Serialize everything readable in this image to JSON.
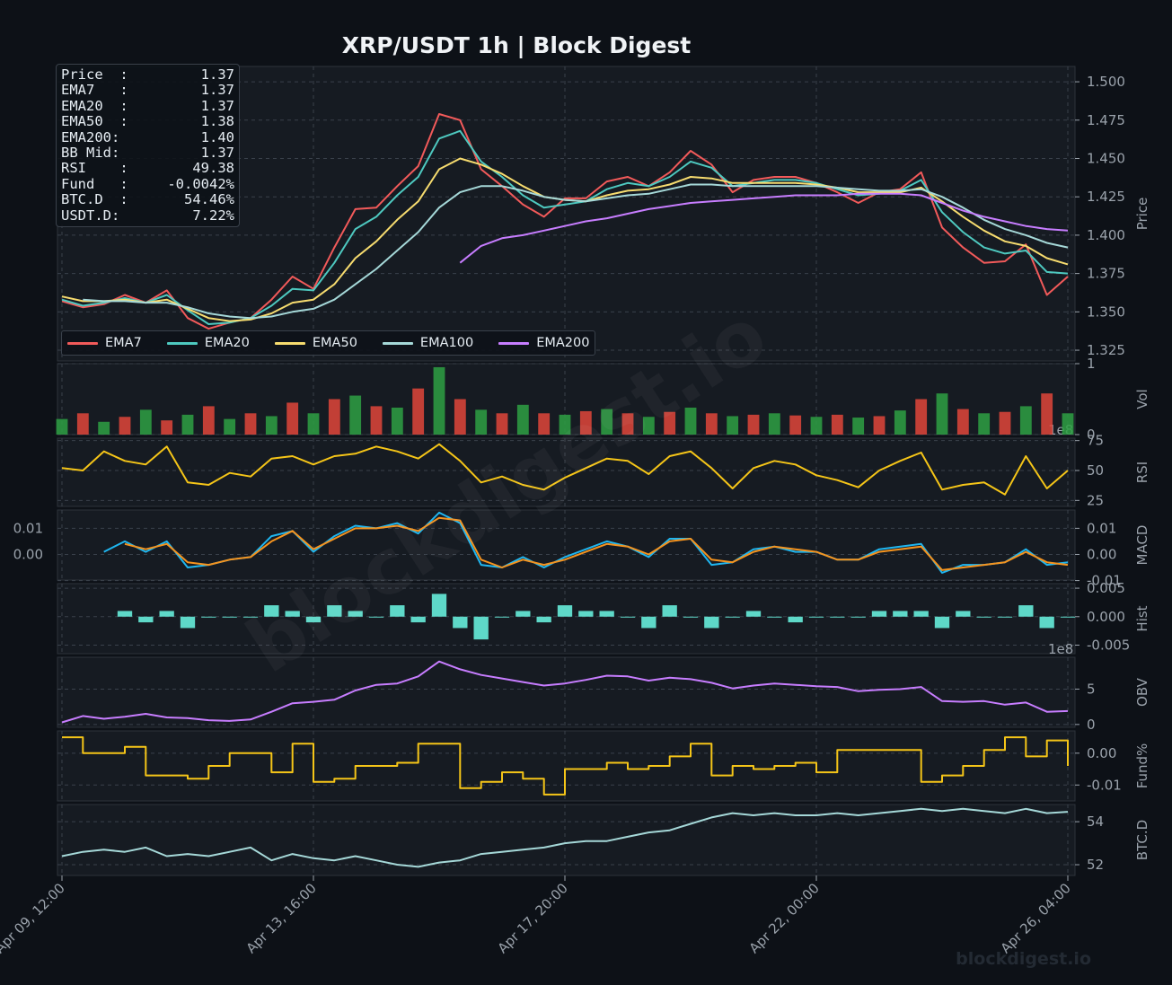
{
  "title": "XRP/USDT  1h  |  Block Digest",
  "watermark": "blockdigest.io",
  "footer": "blockdigest.io",
  "info_box": [
    {
      "label": "Price  :",
      "value": "1.37"
    },
    {
      "label": "EMA7   :",
      "value": "1.37"
    },
    {
      "label": "EMA20  :",
      "value": "1.37"
    },
    {
      "label": "EMA50  :",
      "value": "1.38"
    },
    {
      "label": "EMA200:",
      "value": "1.40"
    },
    {
      "label": "BB Mid:",
      "value": "1.37"
    },
    {
      "label": "RSI    :",
      "value": "49.38"
    },
    {
      "label": "Fund   :",
      "value": "-0.0042%"
    },
    {
      "label": "BTC.D  :",
      "value": "54.46%"
    },
    {
      "label": "USDT.D:",
      "value": "7.22%"
    }
  ],
  "legend": [
    {
      "name": "EMA7",
      "color": "#f25a5a"
    },
    {
      "name": "EMA20",
      "color": "#4ec9c0"
    },
    {
      "name": "EMA50",
      "color": "#f7dc6f"
    },
    {
      "name": "EMA100",
      "color": "#a5d8d8"
    },
    {
      "name": "EMA200",
      "color": "#c77dff"
    }
  ],
  "colors": {
    "bg": "#0d1117",
    "panel": "#161b22",
    "grid": "#3a414b",
    "tick": "#9aa2ab",
    "up": "#2ea043",
    "down": "#e0453a",
    "rsi": "#f5c518",
    "macd": "#1fb6f0",
    "signal": "#f5931e",
    "hist": "#5ed8c8",
    "obv": "#c77dff",
    "funding": "#f5c518",
    "btcd": "#a5d8d8"
  },
  "chart_data": {
    "type": "line",
    "x_labels": [
      "Apr 09, 12:00",
      "Apr 13, 16:00",
      "Apr 17, 20:00",
      "Apr 22, 00:00",
      "Apr 26, 04:00"
    ],
    "panels": [
      {
        "key": "price",
        "ylabel": "Price",
        "ticks": [
          "1.325",
          "1.350",
          "1.375",
          "1.400",
          "1.425",
          "1.450",
          "1.475",
          "1.500"
        ],
        "ylim": [
          1.318,
          1.51
        ],
        "series": [
          {
            "name": "EMA7",
            "values": [
              1.357,
              1.353,
              1.355,
              1.361,
              1.356,
              1.364,
              1.346,
              1.339,
              1.343,
              1.346,
              1.358,
              1.373,
              1.365,
              1.392,
              1.417,
              1.418,
              1.432,
              1.445,
              1.479,
              1.475,
              1.443,
              1.432,
              1.42,
              1.412,
              1.424,
              1.424,
              1.435,
              1.438,
              1.432,
              1.441,
              1.455,
              1.446,
              1.428,
              1.436,
              1.438,
              1.438,
              1.434,
              1.428,
              1.421,
              1.428,
              1.43,
              1.441,
              1.405,
              1.392,
              1.382,
              1.383,
              1.394,
              1.361,
              1.373
            ]
          },
          {
            "name": "EMA20",
            "values": [
              1.358,
              1.354,
              1.356,
              1.359,
              1.356,
              1.361,
              1.351,
              1.342,
              1.343,
              1.346,
              1.354,
              1.365,
              1.364,
              1.382,
              1.404,
              1.412,
              1.426,
              1.438,
              1.463,
              1.468,
              1.448,
              1.438,
              1.426,
              1.418,
              1.42,
              1.422,
              1.43,
              1.434,
              1.432,
              1.438,
              1.448,
              1.444,
              1.432,
              1.434,
              1.436,
              1.436,
              1.434,
              1.43,
              1.426,
              1.427,
              1.429,
              1.436,
              1.415,
              1.402,
              1.392,
              1.388,
              1.39,
              1.376,
              1.375
            ]
          },
          {
            "name": "EMA50",
            "values": [
              1.36,
              1.357,
              1.357,
              1.358,
              1.356,
              1.358,
              1.352,
              1.346,
              1.344,
              1.345,
              1.349,
              1.356,
              1.358,
              1.368,
              1.385,
              1.396,
              1.41,
              1.422,
              1.443,
              1.45,
              1.446,
              1.44,
              1.432,
              1.425,
              1.423,
              1.422,
              1.426,
              1.429,
              1.43,
              1.433,
              1.438,
              1.437,
              1.434,
              1.434,
              1.434,
              1.434,
              1.433,
              1.431,
              1.428,
              1.428,
              1.428,
              1.431,
              1.422,
              1.412,
              1.403,
              1.396,
              1.393,
              1.385,
              1.381
            ]
          },
          {
            "name": "EMA100",
            "values": [
              null,
              1.358,
              1.357,
              1.357,
              1.356,
              1.356,
              1.353,
              1.349,
              1.347,
              1.346,
              1.347,
              1.35,
              1.352,
              1.358,
              1.368,
              1.378,
              1.39,
              1.402,
              1.418,
              1.428,
              1.432,
              1.432,
              1.429,
              1.425,
              1.423,
              1.422,
              1.424,
              1.426,
              1.427,
              1.43,
              1.433,
              1.433,
              1.432,
              1.432,
              1.432,
              1.432,
              1.432,
              1.431,
              1.43,
              1.429,
              1.429,
              1.43,
              1.425,
              1.418,
              1.41,
              1.404,
              1.4,
              1.395,
              1.392
            ]
          },
          {
            "name": "EMA200",
            "values": [
              null,
              null,
              null,
              null,
              null,
              null,
              null,
              null,
              null,
              null,
              null,
              null,
              null,
              null,
              null,
              null,
              null,
              null,
              null,
              1.382,
              1.393,
              1.398,
              1.4,
              1.403,
              1.406,
              1.409,
              1.411,
              1.414,
              1.417,
              1.419,
              1.421,
              1.422,
              1.423,
              1.424,
              1.425,
              1.426,
              1.426,
              1.426,
              1.427,
              1.427,
              1.427,
              1.426,
              1.421,
              1.416,
              1.412,
              1.409,
              1.406,
              1.404,
              1.403
            ]
          }
        ]
      },
      {
        "key": "vol",
        "ylabel": "Vol",
        "ticks": [
          "0",
          "1"
        ],
        "ylim": [
          0,
          1
        ],
        "exponent": "1e8",
        "series": [
          {
            "name": "",
            "values": [
              0.22,
              0.3,
              0.18,
              0.25,
              0.35,
              0.2,
              0.28,
              0.4,
              0.22,
              0.3,
              0.26,
              0.45,
              0.3,
              0.5,
              0.55,
              0.4,
              0.38,
              0.65,
              0.95,
              0.5,
              0.35,
              0.3,
              0.42,
              0.3,
              0.28,
              0.33,
              0.36,
              0.3,
              0.25,
              0.32,
              0.38,
              0.3,
              0.26,
              0.28,
              0.3,
              0.27,
              0.25,
              0.28,
              0.24,
              0.26,
              0.34,
              0.5,
              0.58,
              0.36,
              0.3,
              0.32,
              0.4,
              0.58,
              0.3
            ]
          }
        ]
      },
      {
        "key": "rsi",
        "ylabel": "RSI",
        "ticks": [
          "25",
          "50",
          "75"
        ],
        "ylim": [
          20,
          77
        ],
        "series": [
          {
            "name": "",
            "values": [
              52,
              50,
              66,
              58,
              55,
              70,
              40,
              38,
              48,
              45,
              60,
              62,
              55,
              62,
              64,
              70,
              66,
              60,
              72,
              58,
              40,
              45,
              38,
              34,
              44,
              52,
              60,
              58,
              47,
              62,
              66,
              52,
              35,
              52,
              58,
              55,
              46,
              42,
              36,
              50,
              58,
              65,
              34,
              38,
              40,
              30,
              62,
              35,
              50
            ]
          }
        ]
      },
      {
        "key": "macd",
        "ylabel": "MACD",
        "ticks": [
          "-0.01",
          "0.00",
          "0.01"
        ],
        "ylim": [
          -0.0098,
          0.017
        ],
        "series": [
          {
            "name": "",
            "values": [
              null,
              null,
              0.001,
              0.005,
              0.001,
              0.005,
              -0.005,
              -0.004,
              -0.002,
              -0.001,
              0.007,
              0.009,
              0.001,
              0.007,
              0.011,
              0.01,
              0.012,
              0.008,
              0.016,
              0.012,
              -0.004,
              -0.005,
              -0.001,
              -0.005,
              -0.001,
              0.002,
              0.005,
              0.003,
              -0.001,
              0.006,
              0.006,
              -0.004,
              -0.003,
              0.002,
              0.003,
              0.001,
              0.001,
              -0.002,
              -0.002,
              0.002,
              0.003,
              0.004,
              -0.007,
              -0.004,
              -0.004,
              -0.003,
              0.002,
              -0.004,
              -0.003
            ]
          },
          {
            "name": "",
            "values": [
              null,
              null,
              null,
              0.004,
              0.002,
              0.004,
              -0.003,
              -0.004,
              -0.002,
              -0.001,
              0.005,
              0.009,
              0.002,
              0.006,
              0.01,
              0.01,
              0.011,
              0.009,
              0.014,
              0.013,
              -0.002,
              -0.005,
              -0.002,
              -0.004,
              -0.002,
              0.001,
              0.004,
              0.003,
              0.0,
              0.005,
              0.006,
              -0.002,
              -0.003,
              0.001,
              0.003,
              0.002,
              0.001,
              -0.002,
              -0.002,
              0.001,
              0.002,
              0.003,
              -0.006,
              -0.005,
              -0.004,
              -0.003,
              0.001,
              -0.003,
              -0.004
            ]
          }
        ]
      },
      {
        "key": "hist",
        "ylabel": "Hist",
        "ticks": [
          "-0.005",
          "0.000",
          "0.005"
        ],
        "ylim": [
          -0.0065,
          0.0058
        ],
        "exponent": "1e8",
        "series": [
          {
            "name": "",
            "values": [
              null,
              null,
              null,
              0.001,
              -0.001,
              0.001,
              -0.002,
              0.0,
              0.0,
              0.0,
              0.002,
              0.001,
              -0.001,
              0.002,
              0.001,
              0.0,
              0.002,
              -0.001,
              0.004,
              -0.002,
              -0.004,
              0.0,
              0.001,
              -0.001,
              0.002,
              0.001,
              0.001,
              0.0,
              -0.002,
              0.002,
              0.0,
              -0.002,
              0.0,
              0.001,
              0.0,
              -0.001,
              0.0,
              0.0,
              0.0,
              0.001,
              0.001,
              0.001,
              -0.002,
              0.001,
              0.0,
              0.0,
              0.002,
              -0.002,
              0.0
            ]
          }
        ]
      },
      {
        "key": "obv",
        "ylabel": "OBV",
        "ticks": [
          "0",
          "5"
        ],
        "ylim": [
          -0.4,
          9.5
        ],
        "series": [
          {
            "name": "",
            "values": [
              0.3,
              1.2,
              0.8,
              1.1,
              1.5,
              1.0,
              0.9,
              0.6,
              0.5,
              0.7,
              1.8,
              3.0,
              3.2,
              3.5,
              4.8,
              5.6,
              5.8,
              6.8,
              8.9,
              7.8,
              7.0,
              6.5,
              6.0,
              5.5,
              5.8,
              6.3,
              6.9,
              6.8,
              6.2,
              6.6,
              6.4,
              5.9,
              5.1,
              5.5,
              5.8,
              5.6,
              5.4,
              5.3,
              4.7,
              4.9,
              5.0,
              5.3,
              3.3,
              3.2,
              3.3,
              2.8,
              3.1,
              1.8,
              1.9
            ]
          }
        ]
      },
      {
        "key": "funding",
        "ylabel": "Fund%",
        "ticks": [
          "-0.01",
          "0.00"
        ],
        "ylim": [
          -0.015,
          0.007
        ],
        "series": [
          {
            "name": "",
            "values": [
              0.005,
              0.0,
              0.0,
              0.002,
              -0.007,
              -0.007,
              -0.008,
              -0.004,
              0.0,
              0.0,
              -0.006,
              0.003,
              -0.009,
              -0.008,
              -0.004,
              -0.004,
              -0.003,
              0.003,
              0.003,
              -0.011,
              -0.009,
              -0.006,
              -0.008,
              -0.013,
              -0.005,
              -0.005,
              -0.003,
              -0.005,
              -0.004,
              -0.001,
              0.003,
              -0.007,
              -0.004,
              -0.005,
              -0.004,
              -0.003,
              -0.006,
              0.001,
              0.001,
              0.001,
              0.001,
              -0.009,
              -0.007,
              -0.004,
              0.001,
              0.005,
              -0.001,
              0.004,
              -0.004
            ]
          }
        ]
      },
      {
        "key": "btcd",
        "ylabel": "BTC.D",
        "ticks": [
          "52",
          "54"
        ],
        "ylim": [
          51.5,
          54.8
        ],
        "series": [
          {
            "name": "",
            "values": [
              52.4,
              52.6,
              52.7,
              52.6,
              52.8,
              52.4,
              52.5,
              52.4,
              52.6,
              52.8,
              52.2,
              52.5,
              52.3,
              52.2,
              52.4,
              52.2,
              52.0,
              51.9,
              52.1,
              52.2,
              52.5,
              52.6,
              52.7,
              52.8,
              53.0,
              53.1,
              53.1,
              53.3,
              53.5,
              53.6,
              53.9,
              54.2,
              54.4,
              54.3,
              54.4,
              54.3,
              54.3,
              54.4,
              54.3,
              54.4,
              54.5,
              54.6,
              54.5,
              54.6,
              54.5,
              54.4,
              54.6,
              54.4,
              54.46
            ]
          }
        ]
      }
    ]
  }
}
